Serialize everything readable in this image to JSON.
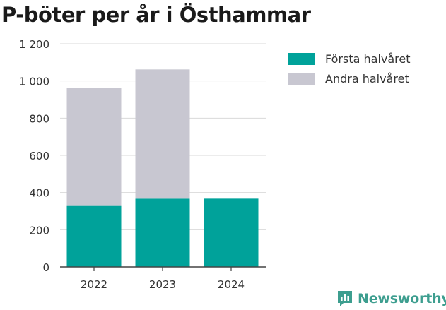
{
  "page": {
    "title": "P-böter per år i Östhammar",
    "brand": "Newsworthy"
  },
  "colors": {
    "first_half": "#00a29a",
    "second_half": "#c8c7d1",
    "grid": "#d9d9d9",
    "axis": "#444444",
    "brand": "#3d9e8f"
  },
  "chart_data": {
    "type": "bar",
    "stacked": true,
    "title": "P-böter per år i Östhammar",
    "categories": [
      "2022",
      "2023",
      "2024"
    ],
    "series": [
      {
        "name": "Första halvåret",
        "values": [
          328,
          367,
          367
        ]
      },
      {
        "name": "Andra halvåret",
        "values": [
          635,
          695,
          0
        ]
      }
    ],
    "ylim": [
      0,
      1200
    ],
    "yticks": [
      0,
      200,
      400,
      600,
      800,
      1000,
      1200
    ],
    "ytick_labels": [
      "0",
      "200",
      "400",
      "600",
      "800",
      "1 000",
      "1 200"
    ],
    "grid": true,
    "legend": "right"
  }
}
